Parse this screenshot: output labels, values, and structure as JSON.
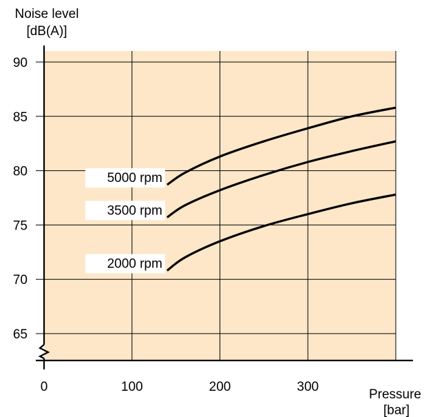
{
  "chart_data": {
    "type": "line",
    "xlabel": [
      "Pressure",
      "[bar]"
    ],
    "ylabel": [
      "Noise level",
      "[dB(A)]"
    ],
    "xlim": [
      0,
      400
    ],
    "ylim": [
      63,
      90
    ],
    "x_ticks": [
      0,
      100,
      200,
      300
    ],
    "y_ticks": [
      90,
      85,
      80,
      75,
      70,
      65
    ],
    "x_grid": [
      0,
      100,
      200,
      300,
      400
    ],
    "y_grid": [
      90,
      85,
      80,
      75,
      70,
      65
    ],
    "grid": true,
    "axis_break": "y",
    "series": [
      {
        "name": "5000 rpm",
        "x": [
          140,
          160,
          200,
          250,
          300,
          350,
          400
        ],
        "y": [
          78.7,
          79.8,
          81.3,
          82.7,
          83.9,
          85.0,
          85.8
        ]
      },
      {
        "name": "3500 rpm",
        "x": [
          140,
          160,
          200,
          250,
          300,
          350,
          400
        ],
        "y": [
          75.7,
          76.8,
          78.2,
          79.6,
          80.8,
          81.8,
          82.7
        ]
      },
      {
        "name": "2000 rpm",
        "x": [
          140,
          160,
          200,
          250,
          300,
          350,
          400
        ],
        "y": [
          70.8,
          72.0,
          73.5,
          74.9,
          76.0,
          77.0,
          77.8
        ]
      }
    ],
    "colors": {
      "plot_background": "#fde7c8",
      "line": "#000000",
      "grid": "#000000"
    }
  }
}
